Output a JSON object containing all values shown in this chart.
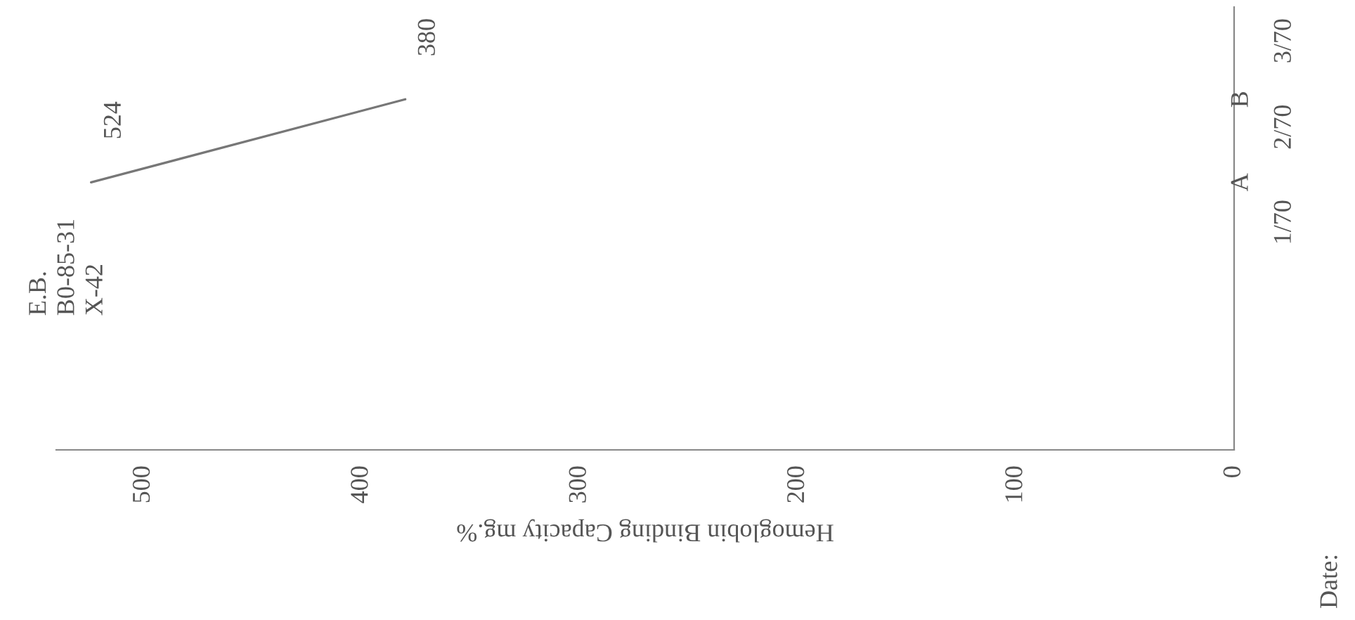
{
  "chart_data": {
    "type": "line",
    "orientation": "horizontal",
    "xlabel": "Hemoglobin Binding Capacity mg.%",
    "x": [
      "1970-01-14",
      "1970-02-10"
    ],
    "values": [
      524,
      380
    ],
    "color": "#777777",
    "data_labels": true,
    "xlim": [
      540,
      0
    ],
    "xticks": [
      0,
      100,
      200,
      300,
      400,
      500
    ],
    "ylim": [
      "1969-10-19",
      "1970-03-12"
    ],
    "yticks": [
      {
        "value": "1970-01-01",
        "label": "1/70"
      },
      {
        "value": "1970-02-01",
        "label": "2/70"
      },
      {
        "value": "1970-03-01",
        "label": "3/70"
      }
    ],
    "annotations": [
      "A",
      "B",
      "E.B.\nB0-85-31\nX-42",
      "Date:"
    ],
    "grid": false,
    "legend": false,
    "marker": "none",
    "line_style": "solid"
  }
}
